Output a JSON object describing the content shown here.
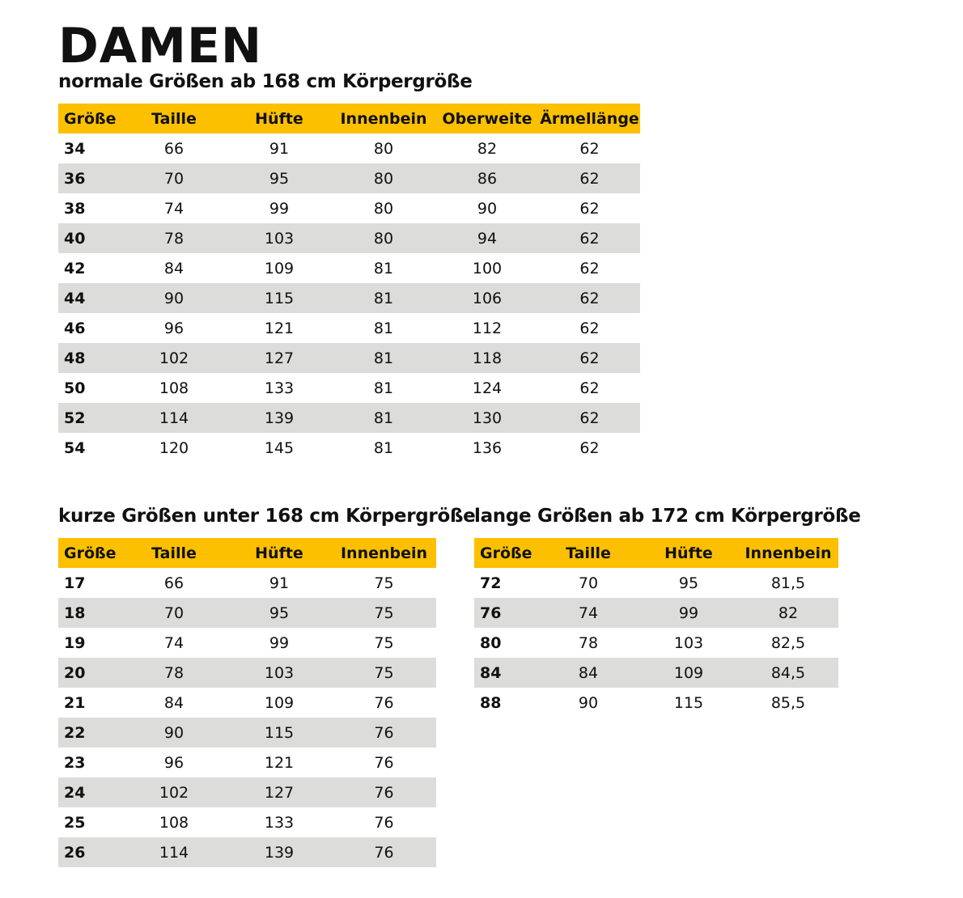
{
  "title": "DAMEN",
  "colors": {
    "header": "#FCC000",
    "stripe": "#DCDCDB"
  },
  "tables": [
    {
      "heading": "normale Größen ab 168 cm Körpergröße",
      "columns": [
        "Größe",
        "Taille",
        "Hüfte",
        "Innenbein",
        "Oberweite",
        "Ärmellänge"
      ],
      "rows": [
        [
          "34",
          "66",
          "91",
          "80",
          "82",
          "62"
        ],
        [
          "36",
          "70",
          "95",
          "80",
          "86",
          "62"
        ],
        [
          "38",
          "74",
          "99",
          "80",
          "90",
          "62"
        ],
        [
          "40",
          "78",
          "103",
          "80",
          "94",
          "62"
        ],
        [
          "42",
          "84",
          "109",
          "81",
          "100",
          "62"
        ],
        [
          "44",
          "90",
          "115",
          "81",
          "106",
          "62"
        ],
        [
          "46",
          "96",
          "121",
          "81",
          "112",
          "62"
        ],
        [
          "48",
          "102",
          "127",
          "81",
          "118",
          "62"
        ],
        [
          "50",
          "108",
          "133",
          "81",
          "124",
          "62"
        ],
        [
          "52",
          "114",
          "139",
          "81",
          "130",
          "62"
        ],
        [
          "54",
          "120",
          "145",
          "81",
          "136",
          "62"
        ]
      ]
    },
    {
      "heading": "kurze Größen unter 168 cm Körpergröße",
      "columns": [
        "Größe",
        "Taille",
        "Hüfte",
        "Innenbein"
      ],
      "rows": [
        [
          "17",
          "66",
          "91",
          "75"
        ],
        [
          "18",
          "70",
          "95",
          "75"
        ],
        [
          "19",
          "74",
          "99",
          "75"
        ],
        [
          "20",
          "78",
          "103",
          "75"
        ],
        [
          "21",
          "84",
          "109",
          "76"
        ],
        [
          "22",
          "90",
          "115",
          "76"
        ],
        [
          "23",
          "96",
          "121",
          "76"
        ],
        [
          "24",
          "102",
          "127",
          "76"
        ],
        [
          "25",
          "108",
          "133",
          "76"
        ],
        [
          "26",
          "114",
          "139",
          "76"
        ]
      ]
    },
    {
      "heading": "lange Größen ab 172 cm Körpergröße",
      "columns": [
        "Größe",
        "Taille",
        "Hüfte",
        "Innenbein"
      ],
      "rows": [
        [
          "72",
          "70",
          "95",
          "81,5"
        ],
        [
          "76",
          "74",
          "99",
          "82"
        ],
        [
          "80",
          "78",
          "103",
          "82,5"
        ],
        [
          "84",
          "84",
          "109",
          "84,5"
        ],
        [
          "88",
          "90",
          "115",
          "85,5"
        ]
      ]
    }
  ]
}
